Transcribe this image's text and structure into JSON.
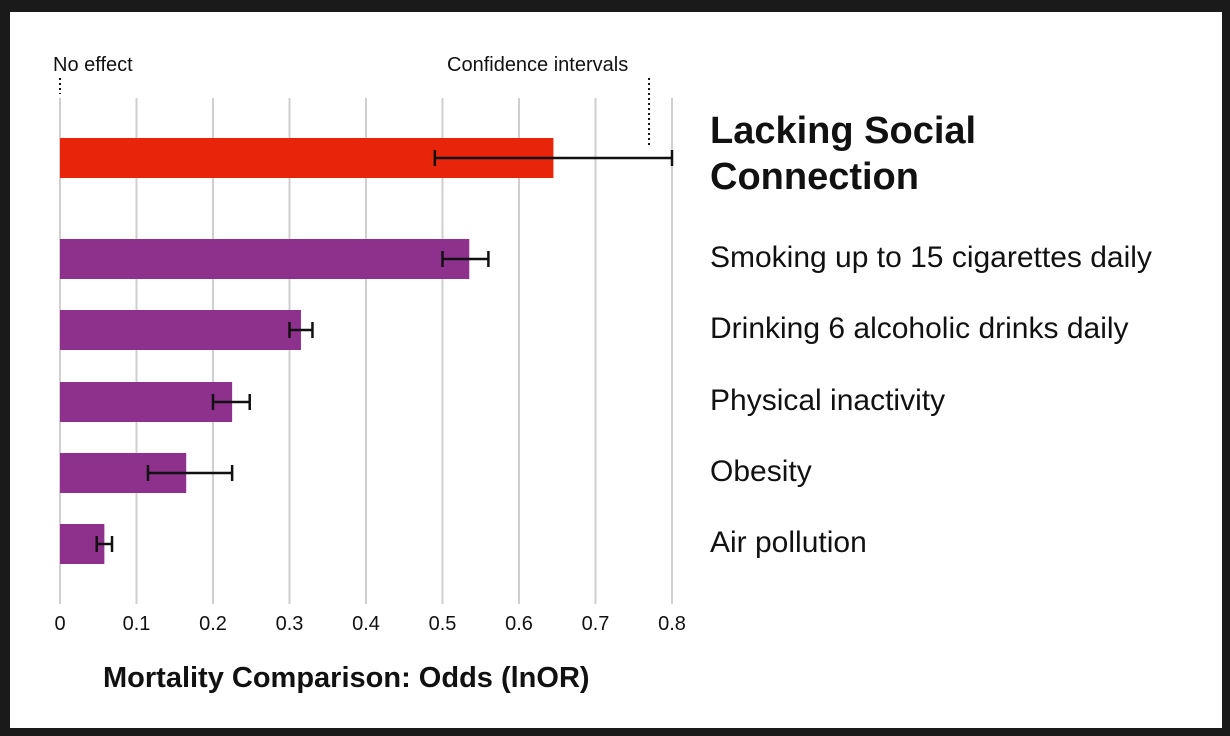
{
  "chart_data": {
    "type": "bar",
    "orientation": "horizontal",
    "categories": [
      "Lacking Social Connection",
      "Smoking up to 15 cigarettes daily",
      "Drinking 6 alcoholic drinks daily",
      "Physical inactivity",
      "Obesity",
      "Air pollution"
    ],
    "values": [
      0.645,
      0.535,
      0.315,
      0.225,
      0.165,
      0.058
    ],
    "error_low": [
      0.49,
      0.5,
      0.3,
      0.2,
      0.115,
      0.048
    ],
    "error_high": [
      0.8,
      0.56,
      0.33,
      0.248,
      0.225,
      0.068
    ],
    "colors": [
      "#e8240a",
      "#8e318c",
      "#8e318c",
      "#8e318c",
      "#8e318c",
      "#8e318c"
    ],
    "xlabel": "Mortality Comparison: Odds (lnOR)",
    "xlim": [
      0,
      0.8
    ],
    "xticks": [
      "0",
      "0.1",
      "0.2",
      "0.3",
      "0.4",
      "0.5",
      "0.6",
      "0.7",
      "0.8"
    ],
    "grid": true,
    "annotations": {
      "no_effect": "No effect",
      "confidence_intervals": "Confidence intervals"
    }
  }
}
